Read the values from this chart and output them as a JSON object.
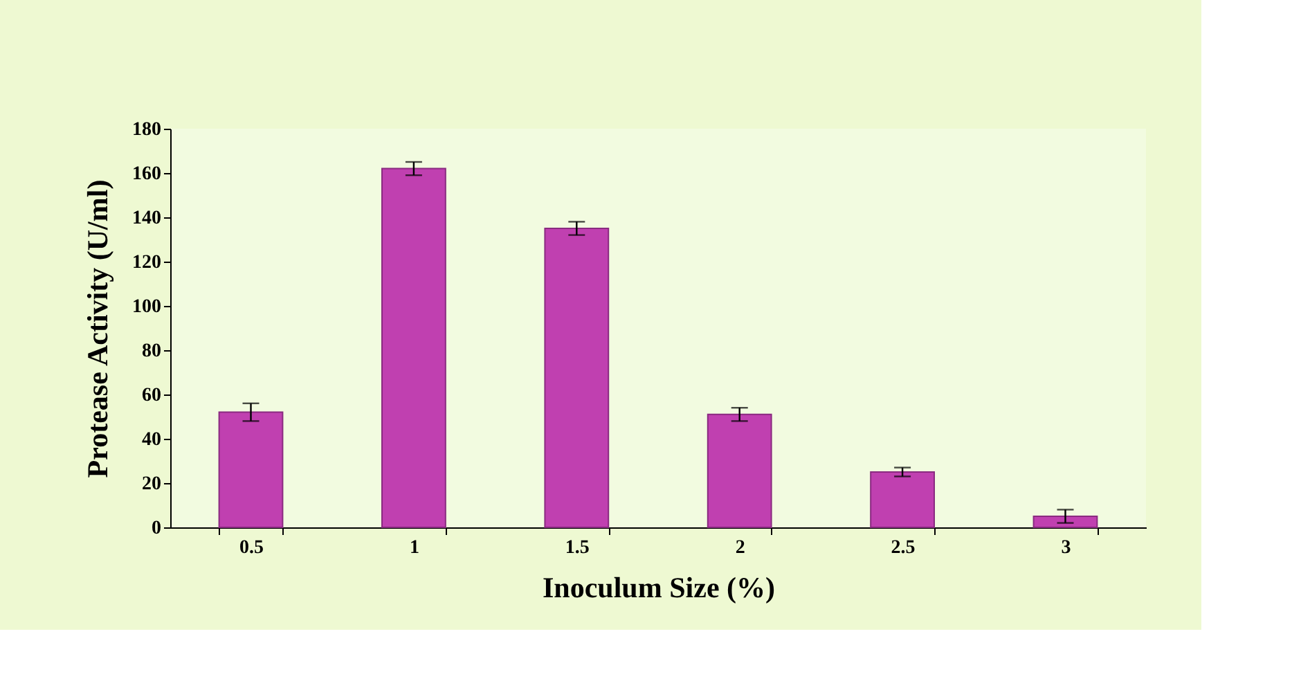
{
  "chart_data": {
    "type": "bar",
    "xlabel": "Inoculum Size (%)",
    "ylabel": "Protease Activity (U/ml)",
    "categories": [
      "0.5",
      "1",
      "1.5",
      "2",
      "2.5",
      "3"
    ],
    "values": [
      52,
      162,
      135,
      51,
      25,
      5
    ],
    "errors": [
      4,
      3,
      3,
      3,
      2,
      3
    ],
    "color": "#c040b0",
    "ylim": [
      0,
      180
    ],
    "yticks": [
      0,
      20,
      40,
      60,
      80,
      100,
      120,
      140,
      160,
      180
    ],
    "grid": false
  }
}
